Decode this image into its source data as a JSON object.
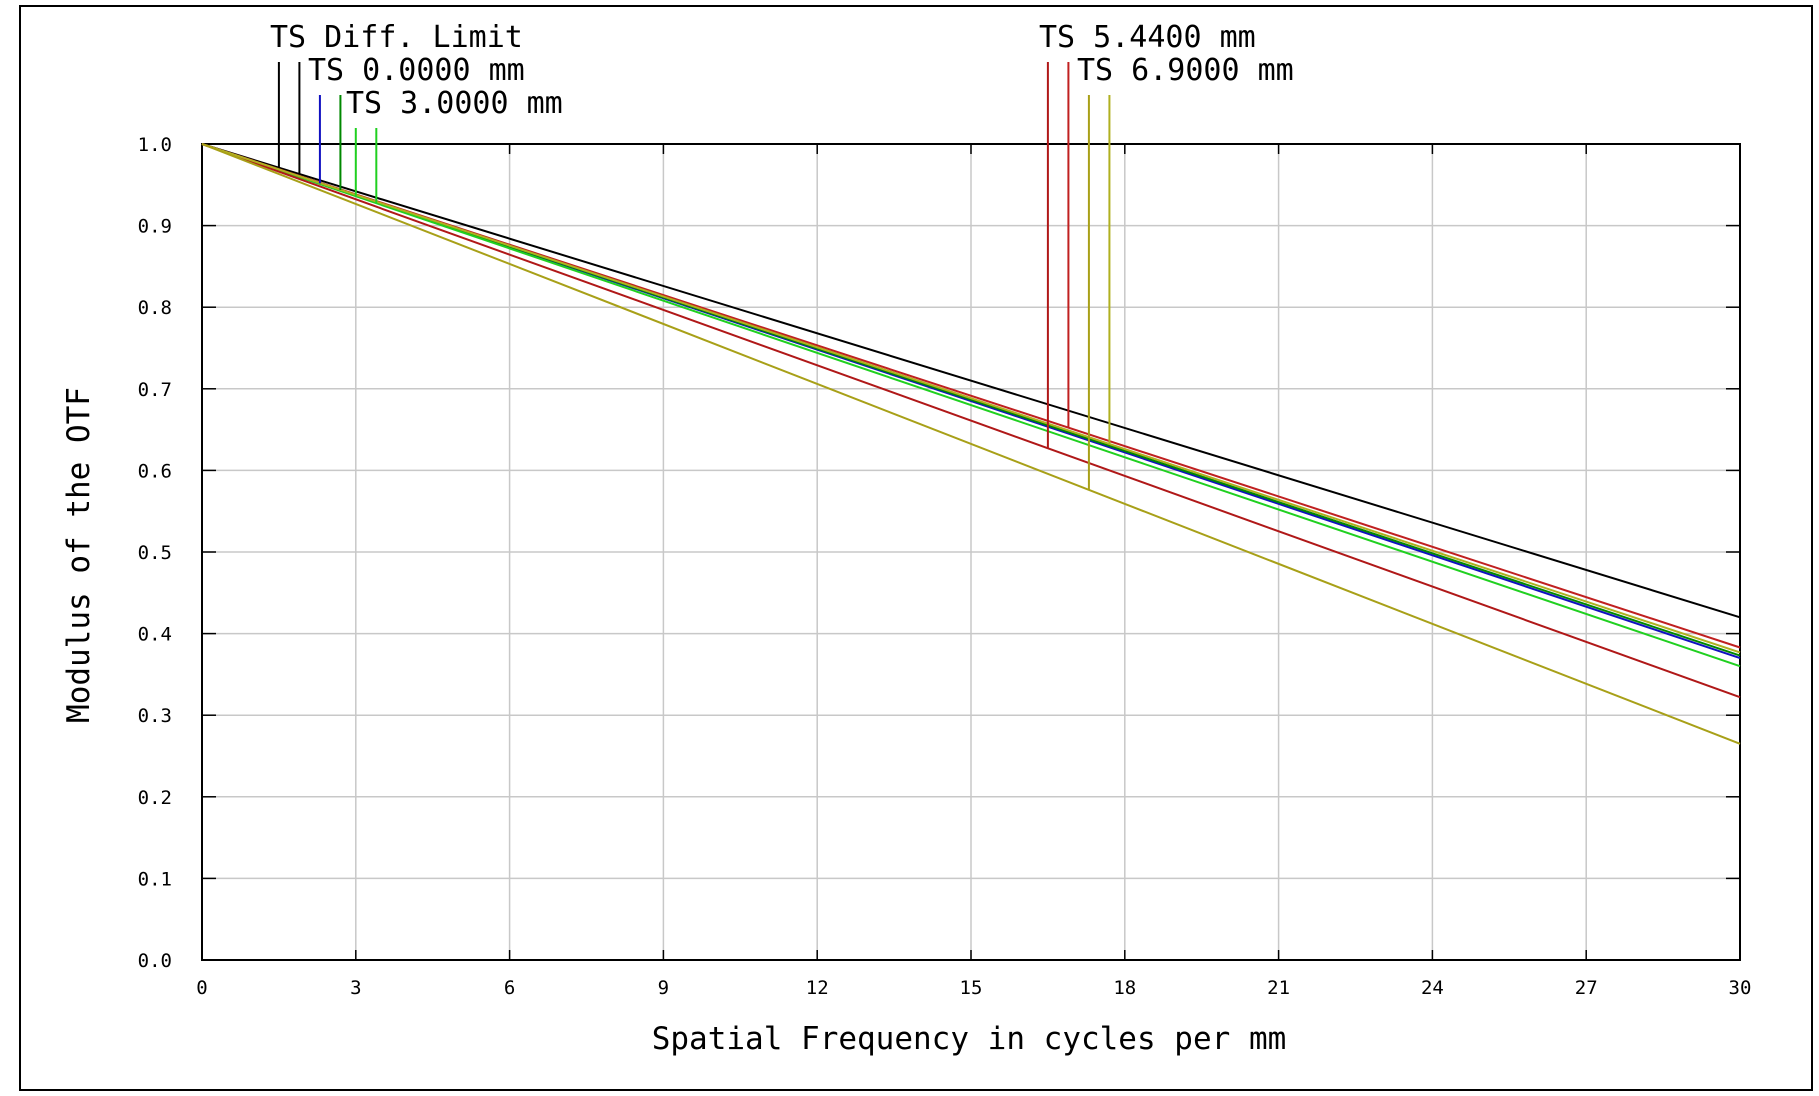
{
  "chart_data": {
    "type": "line",
    "xlabel": "Spatial Frequency in cycles per mm",
    "ylabel": "Modulus of the OTF",
    "xlim": [
      0,
      30
    ],
    "ylim": [
      0,
      1.0
    ],
    "xticks": [
      0,
      3,
      6,
      9,
      12,
      15,
      18,
      21,
      24,
      27,
      30
    ],
    "yticks": [
      0.0,
      0.1,
      0.2,
      0.3,
      0.4,
      0.5,
      0.6,
      0.7,
      0.8,
      0.9,
      1.0
    ],
    "xtick_labels": [
      "0",
      "3",
      "6",
      "9",
      "12",
      "15",
      "18",
      "21",
      "24",
      "27",
      "30"
    ],
    "ytick_labels": [
      "0.0",
      "0.1",
      "0.2",
      "0.3",
      "0.4",
      "0.5",
      "0.6",
      "0.7",
      "0.8",
      "0.9",
      "1.0"
    ],
    "grid": true,
    "legend_labels": [
      "TS Diff. Limit",
      "TS 0.0000 mm",
      "TS 3.0000 mm",
      "TS 5.4400 mm",
      "TS 6.9000 mm"
    ],
    "series": [
      {
        "color": "#000000",
        "x": [
          0,
          30
        ],
        "y": [
          1.0,
          0.42
        ]
      },
      {
        "color": "#1010c0",
        "x": [
          0,
          30
        ],
        "y": [
          1.0,
          0.37
        ]
      },
      {
        "color": "#008800",
        "x": [
          0,
          30
        ],
        "y": [
          1.0,
          0.373
        ]
      },
      {
        "color": "#20d020",
        "x": [
          0,
          30
        ],
        "y": [
          1.0,
          0.36
        ]
      },
      {
        "color": "#c02020",
        "x": [
          0,
          30
        ],
        "y": [
          1.0,
          0.383
        ]
      },
      {
        "color": "#b01818",
        "x": [
          0,
          30
        ],
        "y": [
          1.0,
          0.322
        ]
      },
      {
        "color": "#b0b020",
        "x": [
          0,
          30
        ],
        "y": [
          1.0,
          0.377
        ]
      },
      {
        "color": "#a8a018",
        "x": [
          0,
          30
        ],
        "y": [
          1.0,
          0.265
        ]
      }
    ]
  }
}
